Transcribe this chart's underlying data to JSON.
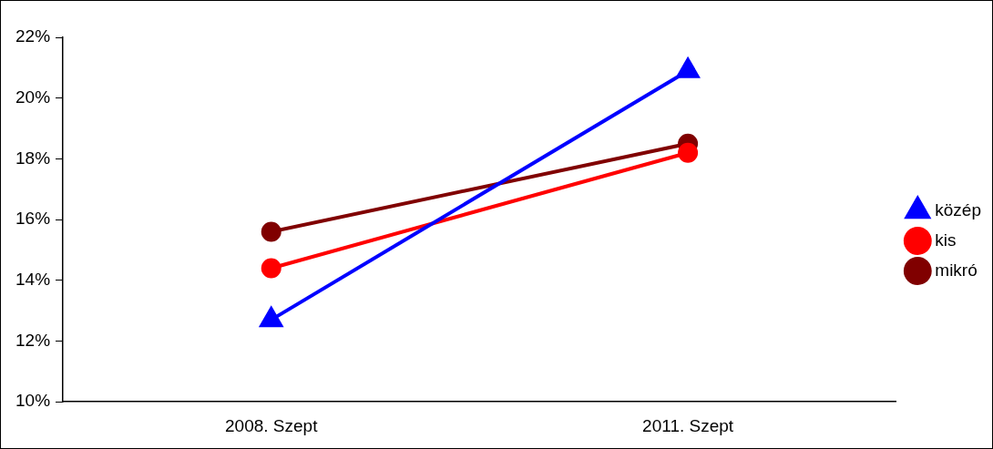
{
  "chart_data": {
    "type": "line",
    "categories": [
      "2008. Szept",
      "2011. Szept"
    ],
    "series": [
      {
        "name": "közép",
        "color": "#0000ff",
        "values": [
          12.7,
          20.9
        ],
        "marker": "triangle"
      },
      {
        "name": "kis",
        "color": "#ff0000",
        "values": [
          14.4,
          18.2
        ],
        "marker": "circle"
      },
      {
        "name": "mikró",
        "color": "#800000",
        "values": [
          15.6,
          18.5
        ],
        "marker": "circle"
      }
    ],
    "ylim": [
      10,
      22
    ],
    "yticks": [
      {
        "value": 10,
        "label": "10%"
      },
      {
        "value": 12,
        "label": "12%"
      },
      {
        "value": 14,
        "label": "14%"
      },
      {
        "value": 16,
        "label": "16%"
      },
      {
        "value": 18,
        "label": "18%"
      },
      {
        "value": 20,
        "label": "20%"
      },
      {
        "value": 22,
        "label": "22%"
      }
    ],
    "grid": false,
    "legend": "right",
    "line_style": "solid"
  }
}
